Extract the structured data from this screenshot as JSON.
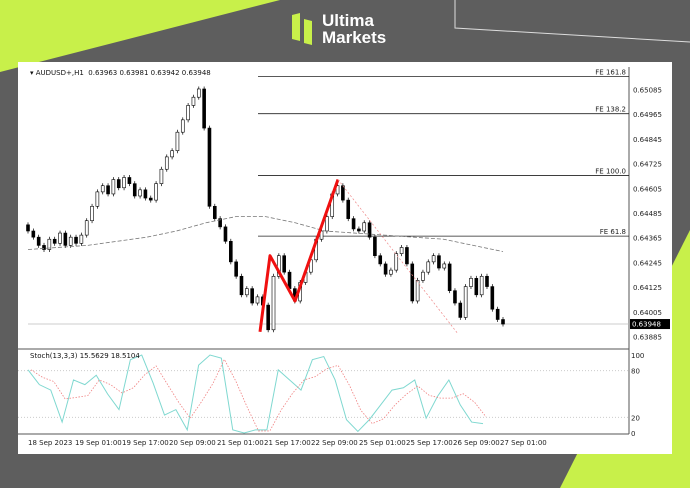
{
  "brand": {
    "name_line1": "Ultima",
    "name_line2": "Markets",
    "accent": "#c8f04a"
  },
  "chart_data": {
    "type": "candlestick",
    "symbol_header": "AUDUSD+,H1",
    "ohlc_header": "0.63963 0.63981 0.63942 0.63948",
    "current_price": 0.63948,
    "price_ticks": [
      "0.65085",
      "0.64965",
      "0.64845",
      "0.64725",
      "0.64605",
      "0.64485",
      "0.64365",
      "0.64245",
      "0.64125",
      "0.64005",
      "0.63885"
    ],
    "price_range": [
      0.6385,
      0.6516
    ],
    "closes": [
      0.644,
      0.6437,
      0.6433,
      0.6431,
      0.6436,
      0.6434,
      0.6439,
      0.6433,
      0.6437,
      0.6434,
      0.6438,
      0.6445,
      0.6452,
      0.6459,
      0.6462,
      0.6458,
      0.6465,
      0.6461,
      0.6466,
      0.6463,
      0.6457,
      0.646,
      0.6456,
      0.6455,
      0.6463,
      0.647,
      0.6476,
      0.6479,
      0.6488,
      0.6494,
      0.6501,
      0.6505,
      0.6509,
      0.649,
      0.6452,
      0.6446,
      0.6442,
      0.6435,
      0.6425,
      0.6418,
      0.6409,
      0.6412,
      0.6405,
      0.6408,
      0.6404,
      0.6392,
      0.6418,
      0.6428,
      0.642,
      0.6412,
      0.6406,
      0.6415,
      0.642,
      0.6426,
      0.6436,
      0.644,
      0.6447,
      0.6458,
      0.6462,
      0.6455,
      0.6446,
      0.6441,
      0.644,
      0.6444,
      0.6437,
      0.6428,
      0.6424,
      0.6419,
      0.6421,
      0.6429,
      0.6432,
      0.6424,
      0.6406,
      0.6416,
      0.642,
      0.6425,
      0.6428,
      0.6422,
      0.6424,
      0.6411,
      0.6405,
      0.6398,
      0.6413,
      0.6417,
      0.6409,
      0.6418,
      0.6413,
      0.6402,
      0.6397,
      0.63948
    ],
    "moving_average": [
      0.6431,
      0.6432,
      0.6433,
      0.6435,
      0.6437,
      0.644,
      0.6444,
      0.6447,
      0.6447,
      0.6444,
      0.644,
      0.6439,
      0.6438,
      0.6437,
      0.6436,
      0.6433,
      0.643
    ],
    "fib_levels": [
      {
        "label": "FE 161.8",
        "price": 0.6515
      },
      {
        "label": "FE 138.2",
        "price": 0.6497
      },
      {
        "label": "FE 100.0",
        "price": 0.6467
      },
      {
        "label": "FE 61.8",
        "price": 0.64375
      }
    ],
    "zigzag": [
      0.6391,
      0.6428,
      0.6406,
      0.6465
    ],
    "stoch": {
      "label": "Stoch(13,3,3) 15.5629 18.5104",
      "ticks": [
        "100",
        "80",
        "20",
        "0"
      ],
      "k": [
        81,
        62,
        55,
        14,
        68,
        62,
        74,
        50,
        30,
        94,
        100,
        64,
        23,
        30,
        4,
        87,
        100,
        96,
        4,
        0,
        4,
        4,
        81,
        68,
        55,
        94,
        98,
        68,
        17,
        2,
        17,
        36,
        55,
        58,
        68,
        19,
        47,
        68,
        36,
        14,
        12
      ]
    },
    "x_labels": [
      "18 Sep 2023",
      "19 Sep 01:00",
      "19 Sep 17:00",
      "20 Sep 09:00",
      "21 Sep 01:00",
      "21 Sep 17:00",
      "22 Sep 09:00",
      "25 Sep 01:00",
      "25 Sep 17:00",
      "26 Sep 09:00",
      "27 Sep 01:00"
    ]
  }
}
